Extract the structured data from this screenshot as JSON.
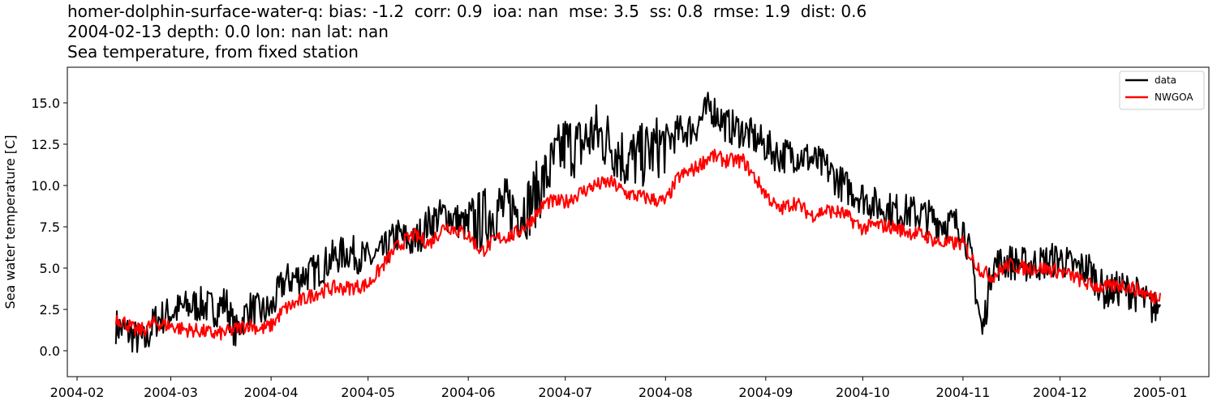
{
  "title": {
    "line1": "homer-dolphin-surface-water-q: bias: -1.2  corr: 0.9  ioa: nan  mse: 3.5  ss: 0.8  rmse: 1.9  dist: 0.6",
    "line2": "2004-02-13 depth: 0.0 lon: nan lat: nan",
    "line3": "Sea temperature, from fixed station"
  },
  "colors": {
    "data": "#000000",
    "model": "#ff0000"
  },
  "chart_data": {
    "type": "line",
    "title": "homer-dolphin-surface-water-q: bias: -1.2  corr: 0.9  ioa: nan  mse: 3.5  ss: 0.8  rmse: 1.9  dist: 0.6 / 2004-02-13 depth: 0.0 lon: nan lat: nan / Sea temperature, from fixed station",
    "xlabel": "",
    "ylabel": "Sea water temperature [C]",
    "ylim": [
      -1.6,
      17.4
    ],
    "xlim": [
      "2004-01-29",
      "2005-01-31"
    ],
    "grid": false,
    "legend_position": "upper right",
    "x_ticks": [
      "2004-02",
      "2004-03",
      "2004-04",
      "2004-05",
      "2004-06",
      "2004-07",
      "2004-08",
      "2004-09",
      "2004-10",
      "2004-11",
      "2004-12",
      "2005-01"
    ],
    "y_ticks": [
      "0.0",
      "2.5",
      "5.0",
      "7.5",
      "10.0",
      "12.5",
      "15.0"
    ],
    "series": [
      {
        "name": "data",
        "color": "#000000",
        "x": [
          "2004-02-13",
          "2004-02-16",
          "2004-02-19",
          "2004-02-22",
          "2004-02-25",
          "2004-03-01",
          "2004-03-05",
          "2004-03-10",
          "2004-03-15",
          "2004-03-18",
          "2004-03-21",
          "2004-03-25",
          "2004-03-29",
          "2004-04-01",
          "2004-04-05",
          "2004-04-10",
          "2004-04-15",
          "2004-04-20",
          "2004-04-25",
          "2004-05-01",
          "2004-05-05",
          "2004-05-10",
          "2004-05-15",
          "2004-05-20",
          "2004-05-25",
          "2004-06-01",
          "2004-06-05",
          "2004-06-10",
          "2004-06-15",
          "2004-06-20",
          "2004-06-25",
          "2004-07-01",
          "2004-07-05",
          "2004-07-10",
          "2004-07-15",
          "2004-07-20",
          "2004-07-25",
          "2004-08-01",
          "2004-08-05",
          "2004-08-10",
          "2004-08-15",
          "2004-08-20",
          "2004-08-25",
          "2004-09-01",
          "2004-09-05",
          "2004-09-10",
          "2004-09-15",
          "2004-09-20",
          "2004-09-25",
          "2004-10-01",
          "2004-10-05",
          "2004-10-10",
          "2004-10-15",
          "2004-10-20",
          "2004-10-25",
          "2004-11-01",
          "2004-11-04",
          "2004-11-07",
          "2004-11-10",
          "2004-11-15",
          "2004-11-20",
          "2004-11-25",
          "2004-12-01",
          "2004-12-05",
          "2004-12-10",
          "2004-12-15",
          "2004-12-20",
          "2004-12-25",
          "2004-12-30",
          "2005-01-01"
        ],
        "values": [
          1.5,
          1.2,
          0.8,
          0.5,
          1.8,
          2.3,
          2.6,
          2.8,
          2.5,
          3.0,
          1.0,
          2.6,
          2.3,
          2.5,
          4.2,
          4.5,
          4.8,
          5.6,
          6.0,
          5.5,
          5.8,
          7.0,
          6.5,
          7.8,
          8.3,
          7.5,
          7.8,
          8.6,
          8.5,
          8.8,
          10.5,
          12.5,
          12.3,
          13.2,
          12.6,
          11.5,
          11.8,
          12.6,
          13.2,
          13.5,
          14.8,
          13.6,
          13.3,
          12.4,
          11.8,
          11.9,
          11.6,
          11.0,
          10.0,
          9.3,
          8.8,
          8.5,
          8.4,
          8.2,
          7.8,
          7.6,
          5.0,
          1.0,
          5.2,
          5.4,
          5.2,
          5.3,
          5.6,
          5.0,
          5.0,
          3.5,
          3.8,
          3.4,
          2.5,
          2.8
        ]
      },
      {
        "name": "NWGOA",
        "color": "#ff0000",
        "x": [
          "2004-02-13",
          "2004-02-16",
          "2004-02-19",
          "2004-02-22",
          "2004-02-25",
          "2004-03-01",
          "2004-03-05",
          "2004-03-10",
          "2004-03-15",
          "2004-03-18",
          "2004-03-21",
          "2004-03-25",
          "2004-03-29",
          "2004-04-01",
          "2004-04-05",
          "2004-04-10",
          "2004-04-15",
          "2004-04-20",
          "2004-04-25",
          "2004-05-01",
          "2004-05-05",
          "2004-05-10",
          "2004-05-15",
          "2004-05-20",
          "2004-05-25",
          "2004-06-01",
          "2004-06-05",
          "2004-06-10",
          "2004-06-15",
          "2004-06-20",
          "2004-06-25",
          "2004-07-01",
          "2004-07-05",
          "2004-07-10",
          "2004-07-15",
          "2004-07-20",
          "2004-07-25",
          "2004-08-01",
          "2004-08-05",
          "2004-08-10",
          "2004-08-15",
          "2004-08-20",
          "2004-08-25",
          "2004-09-01",
          "2004-09-05",
          "2004-09-10",
          "2004-09-15",
          "2004-09-20",
          "2004-09-25",
          "2004-10-01",
          "2004-10-05",
          "2004-10-10",
          "2004-10-15",
          "2004-10-20",
          "2004-10-25",
          "2004-11-01",
          "2004-11-04",
          "2004-11-07",
          "2004-11-10",
          "2004-11-15",
          "2004-11-20",
          "2004-11-25",
          "2004-12-01",
          "2004-12-05",
          "2004-12-10",
          "2004-12-15",
          "2004-12-20",
          "2004-12-25",
          "2004-12-30",
          "2005-01-01"
        ],
        "values": [
          2.0,
          1.7,
          1.2,
          1.3,
          1.7,
          1.5,
          1.3,
          1.2,
          1.0,
          1.1,
          1.3,
          1.6,
          1.3,
          1.5,
          2.5,
          3.0,
          3.5,
          3.8,
          3.8,
          4.0,
          5.0,
          6.3,
          7.0,
          6.5,
          7.6,
          7.0,
          6.0,
          6.8,
          7.0,
          7.8,
          9.0,
          9.0,
          9.5,
          10.0,
          10.2,
          9.5,
          9.3,
          9.0,
          10.5,
          11.0,
          11.8,
          11.5,
          11.5,
          9.5,
          8.5,
          9.0,
          8.2,
          8.5,
          8.3,
          7.4,
          7.6,
          7.5,
          7.2,
          7.0,
          6.5,
          6.5,
          5.5,
          4.8,
          4.5,
          5.2,
          5.0,
          5.0,
          4.8,
          4.5,
          4.0,
          3.8,
          4.0,
          3.7,
          3.2,
          3.5
        ]
      }
    ]
  }
}
